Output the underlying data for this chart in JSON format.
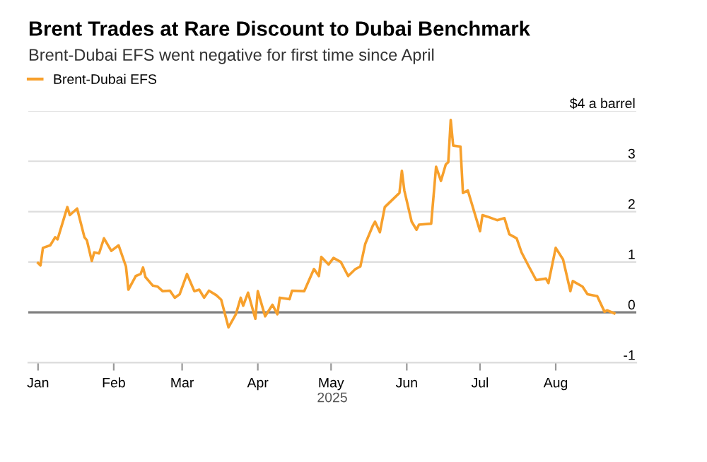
{
  "chart_data": {
    "type": "line",
    "title": "Brent Trades at Rare Discount to Dubai Benchmark",
    "subtitle": "Brent-Dubai EFS went negative for first time since April",
    "xlabel": "2025",
    "legend": "top left",
    "grid": "y",
    "xlim": [
      "2024-12-28",
      "2025-09-03"
    ],
    "xticks": [
      {
        "value": "2025-01-01",
        "label": "Jan"
      },
      {
        "value": "2025-02-01",
        "label": "Feb"
      },
      {
        "value": "2025-03-01",
        "label": "Mar"
      },
      {
        "value": "2025-04-01",
        "label": "Apr"
      },
      {
        "value": "2025-05-01",
        "label": "May"
      },
      {
        "value": "2025-06-01",
        "label": "Jun"
      },
      {
        "value": "2025-07-01",
        "label": "Jul"
      },
      {
        "value": "2025-08-01",
        "label": "Aug"
      }
    ],
    "ylim": [
      -1,
      4
    ],
    "yticks": [
      {
        "value": -1,
        "label": "-1"
      },
      0,
      1,
      2,
      3,
      {
        "value": 4,
        "label": "$4 a barrel"
      }
    ],
    "ref_lines": [
      {
        "axis": "y",
        "value": 0,
        "color": "#7f7f7f"
      }
    ],
    "series": [
      {
        "name": "Brent-Dubai EFS",
        "color": "#f7a02c",
        "x": [
          "2025-01-01",
          "2025-01-02",
          "2025-01-03",
          "2025-01-06",
          "2025-01-08",
          "2025-01-09",
          "2025-01-13",
          "2025-01-14",
          "2025-01-17",
          "2025-01-20",
          "2025-01-21",
          "2025-01-23",
          "2025-01-24",
          "2025-01-26",
          "2025-01-28",
          "2025-01-31",
          "2025-02-03",
          "2025-02-06",
          "2025-02-07",
          "2025-02-10",
          "2025-02-12",
          "2025-02-13",
          "2025-02-14",
          "2025-02-17",
          "2025-02-19",
          "2025-02-21",
          "2025-02-24",
          "2025-02-26",
          "2025-02-28",
          "2025-03-03",
          "2025-03-06",
          "2025-03-08",
          "2025-03-10",
          "2025-03-12",
          "2025-03-15",
          "2025-03-17",
          "2025-03-20",
          "2025-03-23",
          "2025-03-25",
          "2025-03-26",
          "2025-03-28",
          "2025-03-31",
          "2025-04-01",
          "2025-04-04",
          "2025-04-07",
          "2025-04-09",
          "2025-04-10",
          "2025-04-14",
          "2025-04-15",
          "2025-04-20",
          "2025-04-24",
          "2025-04-26",
          "2025-04-27",
          "2025-04-30",
          "2025-05-02",
          "2025-05-05",
          "2025-05-08",
          "2025-05-11",
          "2025-05-13",
          "2025-05-15",
          "2025-05-18",
          "2025-05-19",
          "2025-05-21",
          "2025-05-23",
          "2025-05-26",
          "2025-05-29",
          "2025-05-30",
          "2025-05-31",
          "2025-06-03",
          "2025-06-05",
          "2025-06-06",
          "2025-06-11",
          "2025-06-13",
          "2025-06-15",
          "2025-06-17",
          "2025-06-18",
          "2025-06-19",
          "2025-06-20",
          "2025-06-23",
          "2025-06-24",
          "2025-06-26",
          "2025-07-01",
          "2025-07-02",
          "2025-07-04",
          "2025-07-08",
          "2025-07-11",
          "2025-07-13",
          "2025-07-16",
          "2025-07-18",
          "2025-07-21",
          "2025-07-24",
          "2025-07-28",
          "2025-07-29",
          "2025-08-01",
          "2025-08-04",
          "2025-08-07",
          "2025-08-08",
          "2025-08-12",
          "2025-08-14",
          "2025-08-18",
          "2025-08-21",
          "2025-08-22",
          "2025-08-25"
        ],
        "values": [
          0.98,
          0.93,
          1.28,
          1.33,
          1.49,
          1.45,
          2.09,
          1.93,
          2.06,
          1.49,
          1.43,
          1.02,
          1.19,
          1.17,
          1.47,
          1.22,
          1.33,
          0.91,
          0.45,
          0.72,
          0.76,
          0.89,
          0.7,
          0.53,
          0.51,
          0.42,
          0.43,
          0.29,
          0.36,
          0.76,
          0.42,
          0.45,
          0.29,
          0.43,
          0.34,
          0.25,
          -0.3,
          -0.04,
          0.29,
          0.13,
          0.39,
          -0.13,
          0.42,
          -0.08,
          0.15,
          -0.04,
          0.29,
          0.26,
          0.43,
          0.42,
          0.86,
          0.72,
          1.1,
          0.95,
          1.08,
          1.0,
          0.72,
          0.86,
          0.91,
          1.36,
          1.71,
          1.8,
          1.59,
          2.09,
          2.23,
          2.37,
          2.81,
          2.42,
          1.8,
          1.64,
          1.74,
          1.76,
          2.89,
          2.61,
          2.94,
          2.98,
          3.82,
          3.31,
          3.29,
          2.37,
          2.42,
          1.61,
          1.93,
          1.9,
          1.83,
          1.87,
          1.55,
          1.47,
          1.19,
          0.91,
          0.64,
          0.67,
          0.58,
          1.28,
          1.05,
          0.42,
          0.62,
          0.51,
          0.36,
          0.32,
          0.01,
          0.04,
          -0.02
        ]
      }
    ]
  }
}
